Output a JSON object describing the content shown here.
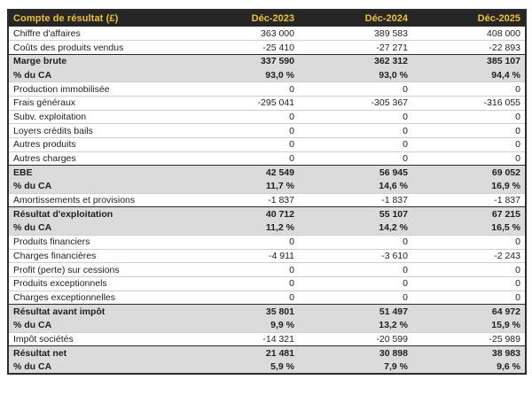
{
  "table": {
    "title": "Compte de résultat (£)",
    "columns": [
      "Déc-2023",
      "Déc-2024",
      "Déc-2025"
    ],
    "colors": {
      "header_bg": "#262626",
      "header_text": "#F1C232",
      "total_row_bg": "#DBDBDB",
      "row_border": "#CFCFCF",
      "dark_border": "#2C2C2C",
      "text": "#1E1E1E",
      "page_bg": "#FFFFFF"
    },
    "rows": [
      {
        "label": "Chiffre d'affaires",
        "values": [
          "363 000",
          "389 583",
          "408 000"
        ],
        "style": "normal"
      },
      {
        "label": "Coûts des produits vendus",
        "values": [
          "-25 410",
          "-27 271",
          "-22 893"
        ],
        "style": "normal"
      },
      {
        "label": "Marge brute",
        "values": [
          "337 590",
          "362 312",
          "385 107"
        ],
        "style": "total"
      },
      {
        "label": "% du CA",
        "values": [
          "93,0 %",
          "93,0 %",
          "94,4 %"
        ],
        "style": "total_pct"
      },
      {
        "label": "Production immobilisée",
        "values": [
          "0",
          "0",
          "0"
        ],
        "style": "normal"
      },
      {
        "label": "Frais généraux",
        "values": [
          "-295 041",
          "-305 367",
          "-316 055"
        ],
        "style": "normal"
      },
      {
        "label": "Subv. exploitation",
        "values": [
          "0",
          "0",
          "0"
        ],
        "style": "normal"
      },
      {
        "label": "Loyers crédits bails",
        "values": [
          "0",
          "0",
          "0"
        ],
        "style": "normal"
      },
      {
        "label": "Autres produits",
        "values": [
          "0",
          "0",
          "0"
        ],
        "style": "normal"
      },
      {
        "label": "Autres charges",
        "values": [
          "0",
          "0",
          "0"
        ],
        "style": "normal"
      },
      {
        "label": "EBE",
        "values": [
          "42 549",
          "56 945",
          "69 052"
        ],
        "style": "total"
      },
      {
        "label": "% du CA",
        "values": [
          "11,7 %",
          "14,6 %",
          "16,9 %"
        ],
        "style": "total_pct"
      },
      {
        "label": "Amortissements et provisions",
        "values": [
          "-1 837",
          "-1 837",
          "-1 837"
        ],
        "style": "normal"
      },
      {
        "label": "Résultat d'exploitation",
        "values": [
          "40 712",
          "55 107",
          "67 215"
        ],
        "style": "total"
      },
      {
        "label": "% du CA",
        "values": [
          "11,2 %",
          "14,2 %",
          "16,5 %"
        ],
        "style": "total_pct"
      },
      {
        "label": "Produits financiers",
        "values": [
          "0",
          "0",
          "0"
        ],
        "style": "normal"
      },
      {
        "label": "Charges financières",
        "values": [
          "-4 911",
          "-3 610",
          "-2 243"
        ],
        "style": "normal"
      },
      {
        "label": "Profit (perte) sur cessions",
        "values": [
          "0",
          "0",
          "0"
        ],
        "style": "normal"
      },
      {
        "label": "Produits exceptionnels",
        "values": [
          "0",
          "0",
          "0"
        ],
        "style": "normal"
      },
      {
        "label": "Charges exceptionnelles",
        "values": [
          "0",
          "0",
          "0"
        ],
        "style": "normal"
      },
      {
        "label": "Résultat avant impôt",
        "values": [
          "35 801",
          "51 497",
          "64 972"
        ],
        "style": "total"
      },
      {
        "label": "% du CA",
        "values": [
          "9,9 %",
          "13,2 %",
          "15,9 %"
        ],
        "style": "total_pct"
      },
      {
        "label": "Impôt sociétés",
        "values": [
          "-14 321",
          "-20 599",
          "-25 989"
        ],
        "style": "normal"
      },
      {
        "label": "Résultat net",
        "values": [
          "21 481",
          "30 898",
          "38 983"
        ],
        "style": "total"
      },
      {
        "label": "% du CA",
        "values": [
          "5,9 %",
          "7,9 %",
          "9,6 %"
        ],
        "style": "total_pct"
      }
    ]
  }
}
